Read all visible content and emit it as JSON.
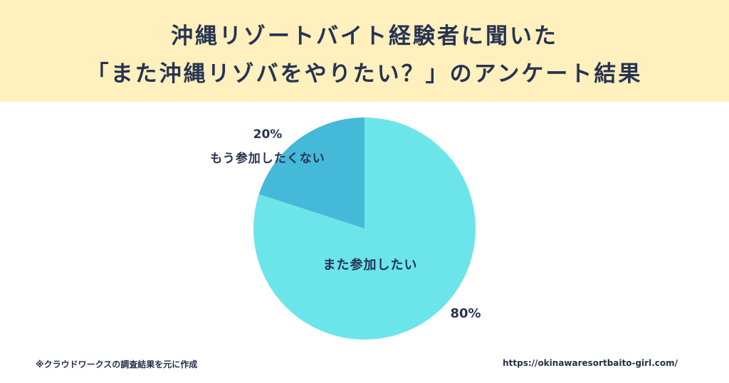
{
  "header": {
    "title_line_1": "沖縄リゾートバイト経験者に聞いた",
    "title_line_2": "「また沖縄リゾバをやりたい？」のアンケート結果",
    "background_color": "#fff0bd",
    "text_color": "#263352"
  },
  "chart_data": {
    "type": "pie",
    "slices": [
      {
        "label": "また参加したい",
        "value": 80,
        "value_label": "80%",
        "color": "#6ce5ea"
      },
      {
        "label": "もう参加したくない",
        "value": 20,
        "value_label": "20%",
        "color": "#45b9d8"
      }
    ]
  },
  "footer": {
    "source_note": "※クラウドワークスの調査結果を元に作成",
    "url": "https://okinawaresortbaito-girl.com/"
  }
}
